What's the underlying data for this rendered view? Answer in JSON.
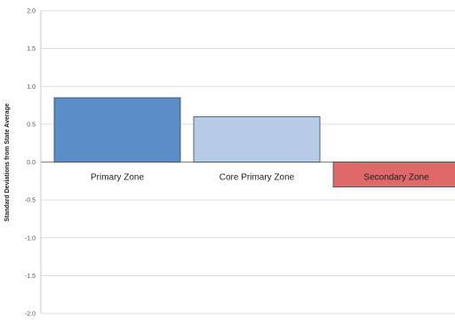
{
  "chart_data": {
    "type": "bar",
    "title": "",
    "xlabel": "",
    "ylabel": "Standard Deviations from State Average",
    "ylim": [
      -2.0,
      2.0
    ],
    "yticks": [
      "2.0",
      "1.5",
      "1.0",
      "0.5",
      "0.0",
      "-0.5",
      "-1.0",
      "-1.5",
      "-2.0"
    ],
    "categories": [
      "Primary Zone",
      "Core Primary Zone",
      "Secondary Zone"
    ],
    "values": [
      0.85,
      0.6,
      -0.33
    ],
    "colors": [
      "#5b8ec7",
      "#b6cbe6",
      "#df6868"
    ],
    "grid": true,
    "legend": "none"
  }
}
